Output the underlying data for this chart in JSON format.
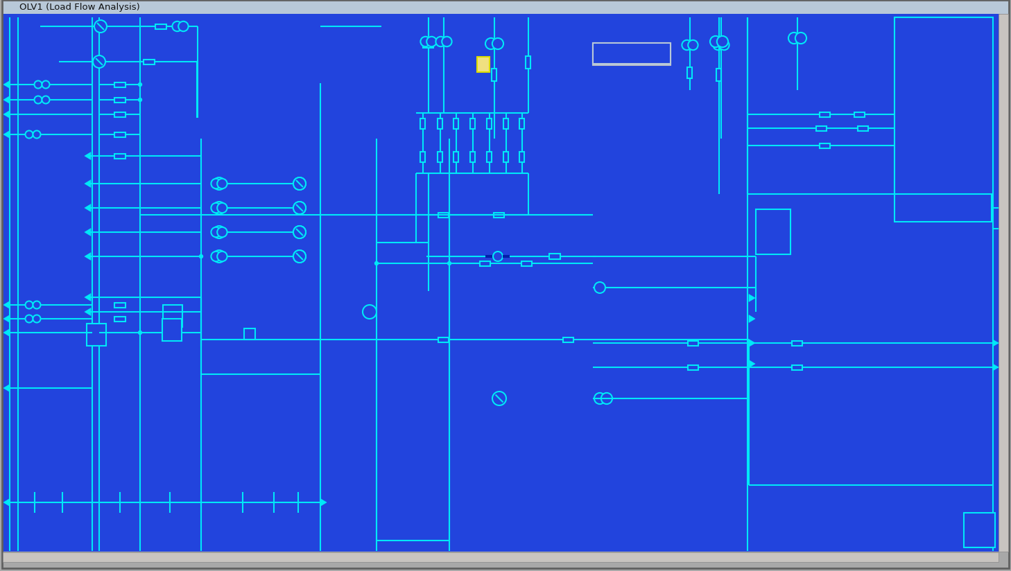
{
  "bg_color": "#2244dd",
  "line_color": "#00e8f8",
  "title": "OLV1 (Load Flow Analysis)",
  "title_bar_color": "#c0ccd8",
  "fig_width": 14.58,
  "fig_height": 8.24,
  "lw": 1.5
}
